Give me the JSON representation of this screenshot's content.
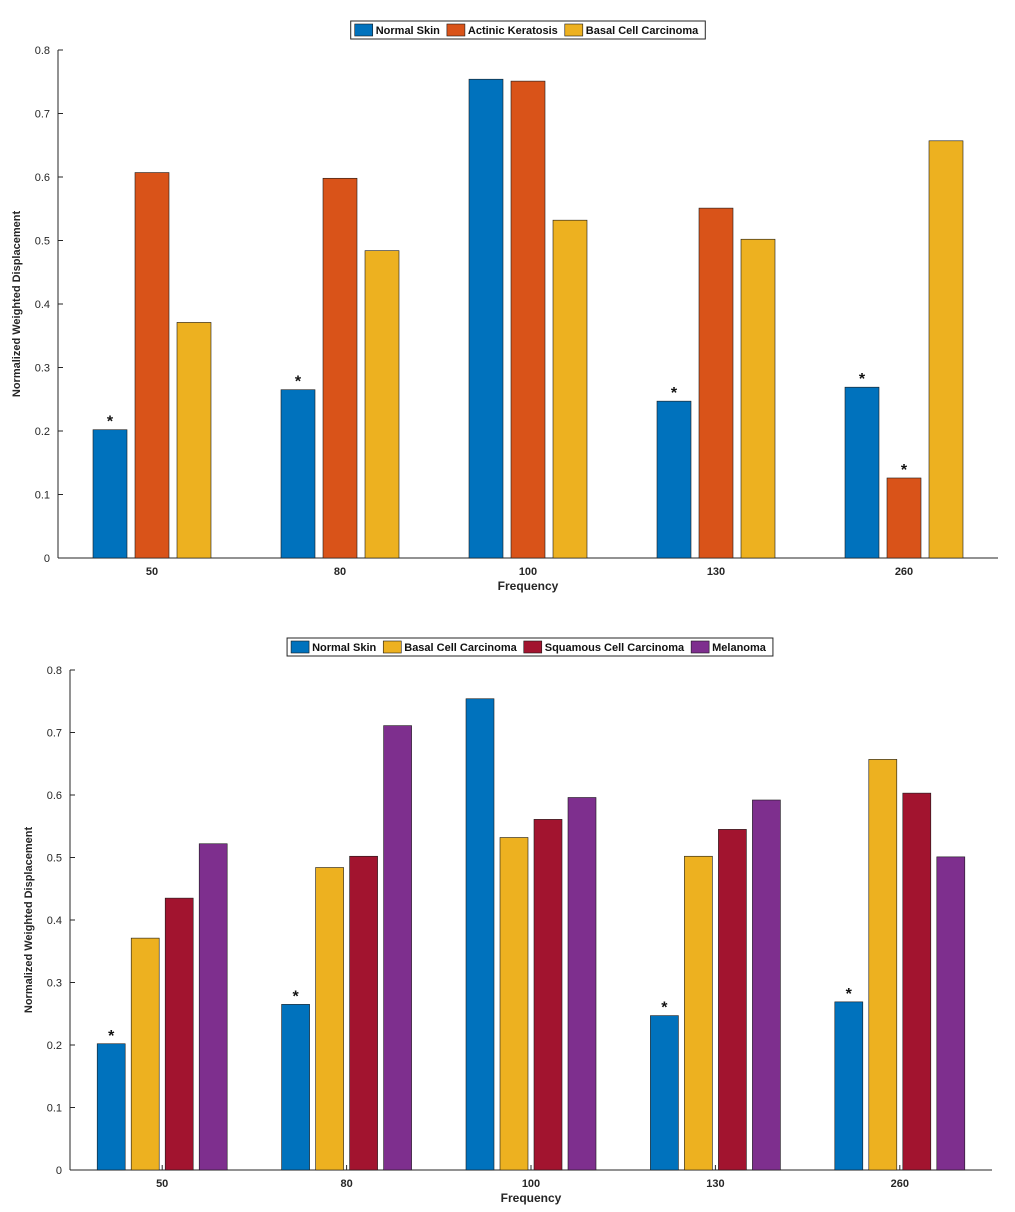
{
  "chart_data": [
    {
      "type": "bar",
      "categories": [
        "50",
        "80",
        "100",
        "130",
        "260"
      ],
      "xlabel": "Frequency",
      "ylabel": "Normalized Weighted Displacement",
      "ylim": [
        0,
        0.8
      ],
      "yticks": [
        "0",
        "0.1",
        "0.2",
        "0.3",
        "0.4",
        "0.5",
        "0.6",
        "0.7",
        "0.8"
      ],
      "legend_position": "top",
      "series": [
        {
          "name": "Normal Skin",
          "color": "#0072BD",
          "values": [
            0.202,
            0.265,
            0.754,
            0.247,
            0.269
          ],
          "significant": [
            true,
            true,
            false,
            true,
            true
          ]
        },
        {
          "name": "Actinic Keratosis",
          "color": "#D95319",
          "values": [
            0.607,
            0.598,
            0.751,
            0.551,
            0.126
          ],
          "significant": [
            false,
            false,
            false,
            false,
            true
          ]
        },
        {
          "name": "Basal Cell Carcinoma",
          "color": "#EDB120",
          "values": [
            0.371,
            0.484,
            0.532,
            0.502,
            0.657
          ],
          "significant": [
            false,
            false,
            false,
            false,
            false
          ]
        }
      ],
      "marker": "*"
    },
    {
      "type": "bar",
      "categories": [
        "50",
        "80",
        "100",
        "130",
        "260"
      ],
      "xlabel": "Frequency",
      "ylabel": "Normalized Weighted Displacement",
      "ylim": [
        0,
        0.8
      ],
      "yticks": [
        "0",
        "0.1",
        "0.2",
        "0.3",
        "0.4",
        "0.5",
        "0.6",
        "0.7",
        "0.8"
      ],
      "legend_position": "top",
      "series": [
        {
          "name": "Normal Skin",
          "color": "#0072BD",
          "values": [
            0.202,
            0.265,
            0.754,
            0.247,
            0.269
          ],
          "significant": [
            true,
            true,
            false,
            true,
            true
          ]
        },
        {
          "name": "Basal Cell Carcinoma",
          "color": "#EDB120",
          "values": [
            0.371,
            0.484,
            0.532,
            0.502,
            0.657
          ],
          "significant": [
            false,
            false,
            false,
            false,
            false
          ]
        },
        {
          "name": "Squamous Cell Carcinoma",
          "color": "#A2142F",
          "values": [
            0.435,
            0.502,
            0.561,
            0.545,
            0.603
          ],
          "significant": [
            false,
            false,
            false,
            false,
            false
          ]
        },
        {
          "name": "Melanoma",
          "color": "#7E2F8E",
          "values": [
            0.522,
            0.711,
            0.596,
            0.592,
            0.501
          ],
          "significant": [
            false,
            false,
            false,
            false,
            false
          ]
        }
      ],
      "marker": "*"
    }
  ]
}
